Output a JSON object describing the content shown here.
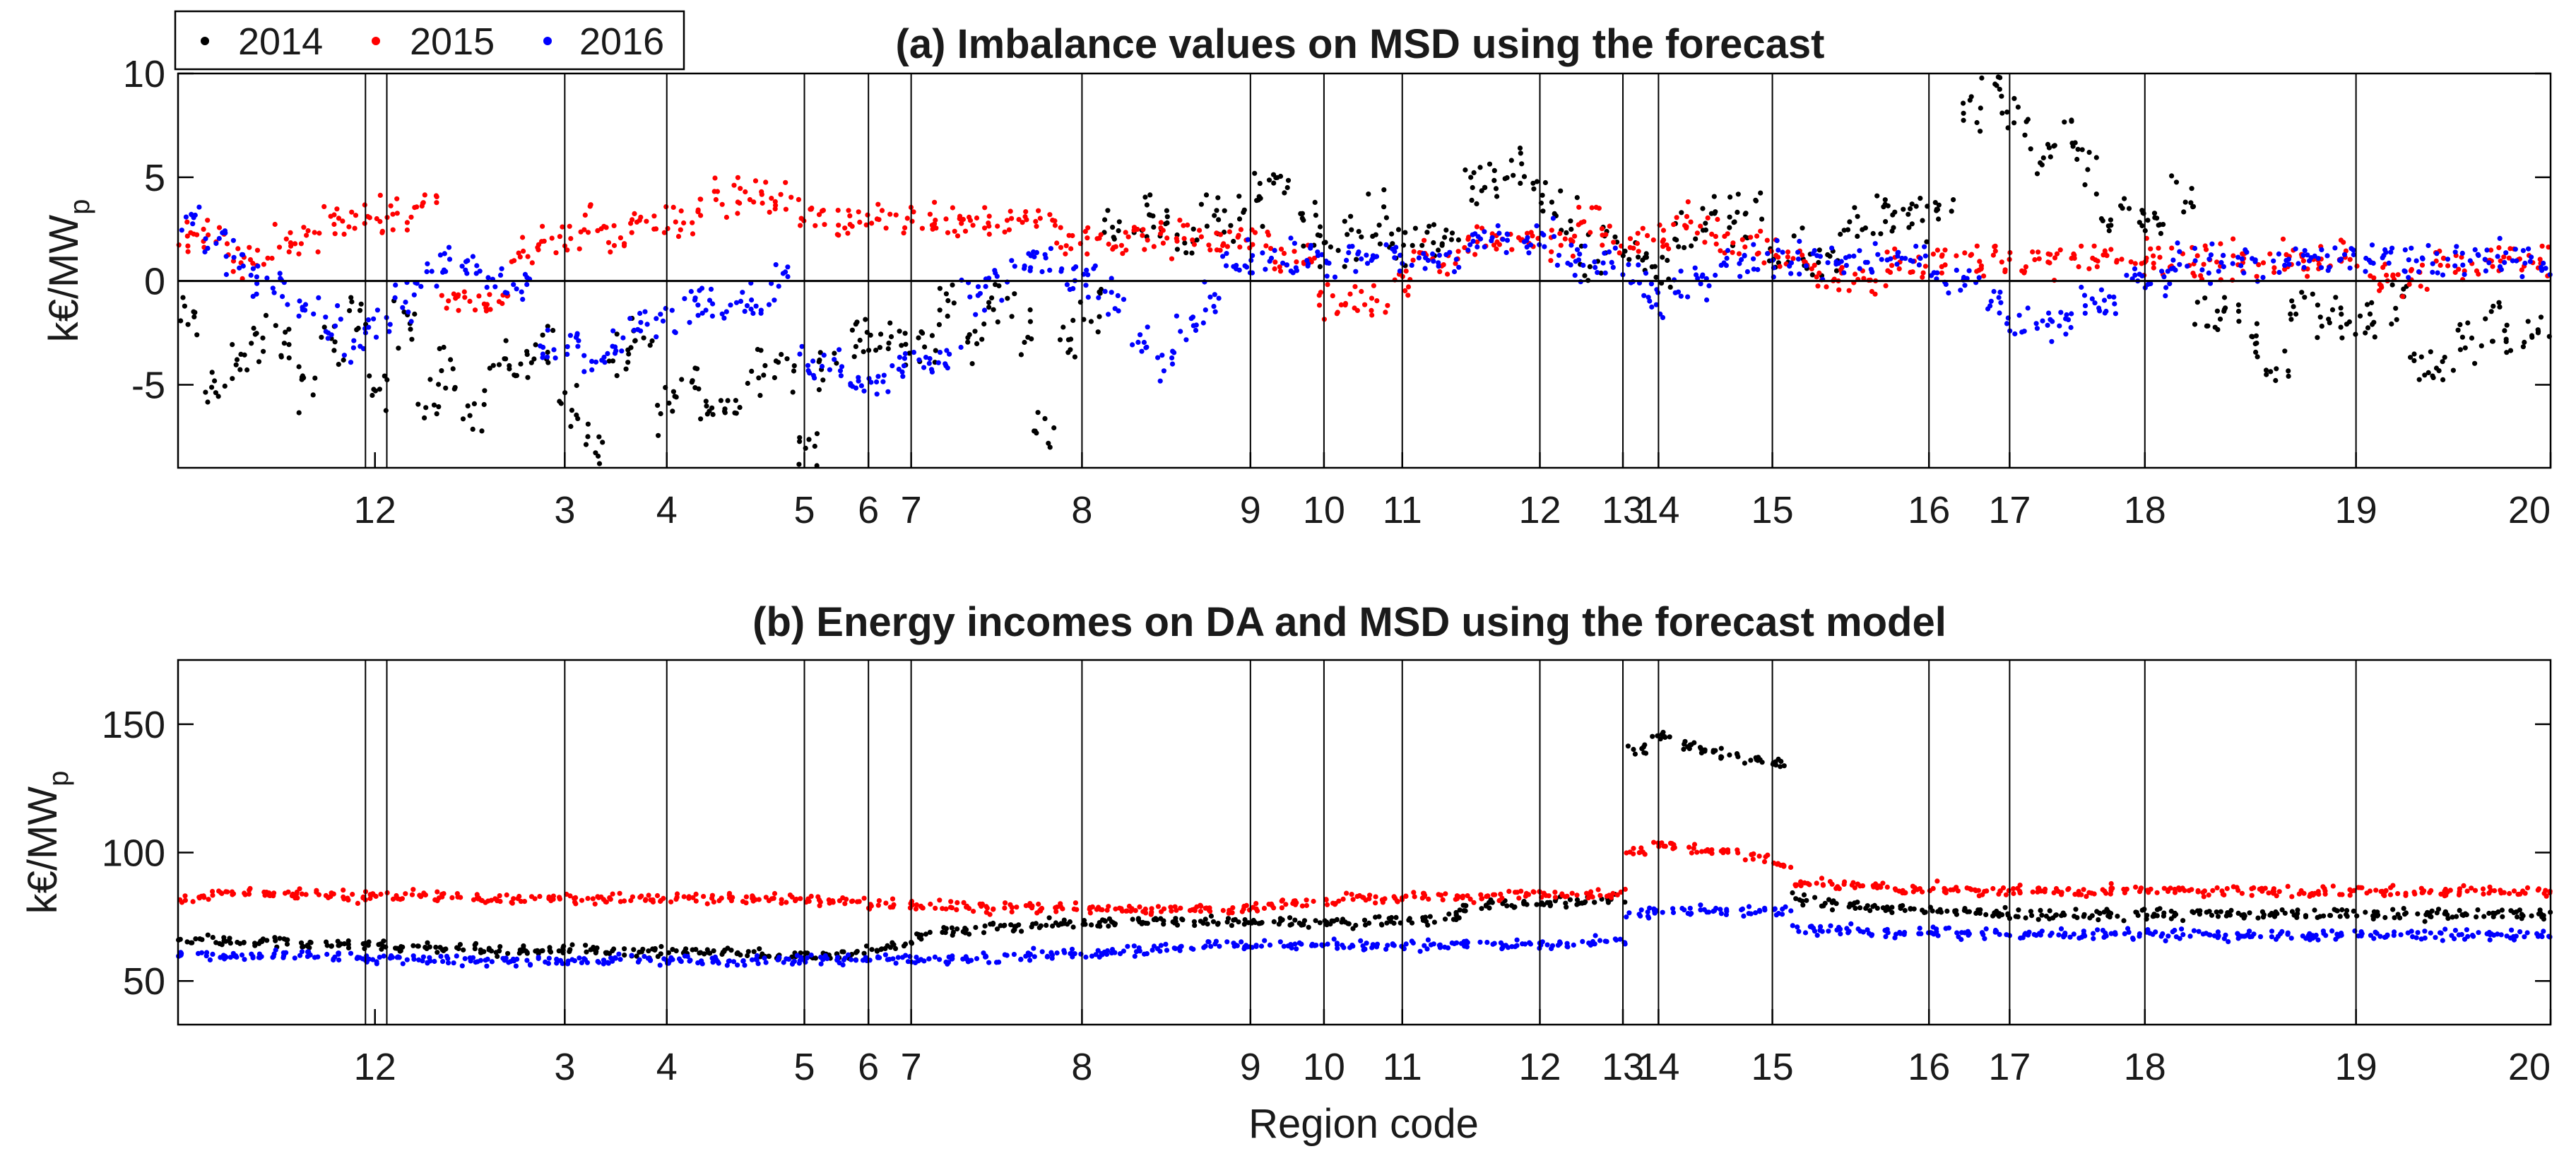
{
  "chart_data": [
    {
      "id": "a",
      "type": "scatter",
      "title": "(a) Imbalance values on MSD using the forecast",
      "ylabel": "k€/MW",
      "ylabel_sub": "p",
      "xlabel": "",
      "ylim": [
        -9,
        10
      ],
      "yticks": [
        -5,
        0,
        5,
        10
      ],
      "zero_line": true,
      "series": [
        {
          "name": "2014",
          "color": "#000000",
          "levels": [
            -2,
            -5,
            -4,
            -3,
            -3,
            -5,
            -3,
            -2,
            -5,
            -2,
            -6,
            -4,
            -6,
            -4,
            -4,
            -3,
            -6,
            -8,
            -4,
            -3,
            -6,
            -5,
            -6,
            -6,
            -4,
            -4,
            -8,
            -4,
            -3,
            -3,
            -3,
            -3,
            -1,
            -3,
            -1,
            -2,
            -7,
            -3,
            -1,
            3,
            3,
            3,
            2,
            3,
            3,
            4,
            5,
            3,
            2,
            2,
            3,
            2,
            2,
            2,
            5,
            5,
            5,
            4,
            3,
            1,
            2,
            1,
            1,
            2,
            3,
            3,
            3,
            1,
            1,
            1,
            3,
            3,
            3,
            3,
            3,
            8,
            9,
            8,
            6,
            7,
            5,
            3,
            3,
            3,
            4,
            -2,
            -2,
            -3,
            -4,
            -1,
            -2,
            -2,
            -2,
            -1,
            -4,
            -4,
            -3,
            -2,
            -3,
            -2
          ],
          "spread": 1.8
        },
        {
          "name": "2015",
          "color": "#ff0000",
          "levels": [
            2,
            2,
            1,
            1,
            2,
            2,
            3,
            3,
            3,
            3,
            4,
            -1,
            -1,
            -1,
            1,
            2,
            2,
            3,
            2,
            3,
            3,
            3,
            4,
            4,
            4,
            4,
            3,
            3,
            3,
            3,
            3,
            3,
            3,
            3,
            3,
            3,
            3,
            2,
            2,
            2,
            2,
            2,
            2,
            2,
            2,
            2,
            1,
            1,
            -1,
            -1,
            -1,
            0,
            1,
            1,
            2,
            2,
            2,
            2,
            2,
            3,
            2,
            2,
            2,
            3,
            2,
            2,
            2,
            1,
            1,
            0,
            0,
            0,
            1,
            1,
            1,
            1,
            1,
            1,
            1,
            1,
            1,
            1,
            1,
            1,
            1,
            1,
            1,
            1,
            1,
            1,
            1,
            1,
            0,
            0,
            0,
            1,
            1,
            1,
            1,
            1
          ],
          "spread": 1.3
        },
        {
          "name": "2016",
          "color": "#0000ff",
          "levels": [
            3,
            2,
            1,
            0,
            0,
            -1,
            -2,
            -3,
            -2,
            -1,
            0,
            1,
            1,
            0,
            0,
            -3,
            -3,
            -4,
            -3,
            -2,
            -2,
            -1,
            -1,
            -1,
            -1,
            0,
            -4,
            -4,
            -5,
            -5,
            -4,
            -4,
            -4,
            -1,
            0,
            1,
            1,
            0,
            0,
            -1,
            -3,
            -4,
            -2,
            -1,
            1,
            1,
            1,
            1,
            1,
            1,
            1,
            1,
            1,
            1,
            2,
            2,
            2,
            2,
            1,
            1,
            1,
            0,
            -1,
            0,
            0,
            1,
            1,
            1,
            1,
            1,
            1,
            1,
            1,
            1,
            0,
            0,
            -1,
            -2,
            -2,
            -2,
            -1,
            -1,
            0,
            0,
            1,
            1,
            1,
            1,
            1,
            1,
            1,
            1,
            1,
            1,
            1,
            1,
            1,
            1,
            1,
            1
          ],
          "spread": 1.3
        }
      ]
    },
    {
      "id": "b",
      "type": "scatter",
      "title": "(b) Energy incomes on DA and MSD using the forecast model",
      "ylabel": "k€/MW",
      "ylabel_sub": "p",
      "xlabel": "Region code",
      "ylim": [
        33,
        175
      ],
      "yticks": [
        50,
        100,
        150
      ],
      "zero_line": false,
      "series": [
        {
          "name": "2014",
          "color": "#000000",
          "levels": [
            66,
            66,
            65,
            65,
            65,
            64,
            64,
            64,
            64,
            63,
            63,
            63,
            63,
            62,
            62,
            62,
            62,
            62,
            62,
            61,
            61,
            61,
            61,
            61,
            60,
            60,
            60,
            60,
            60,
            62,
            64,
            68,
            70,
            70,
            71,
            71,
            72,
            72,
            72,
            73,
            73,
            73,
            73,
            73,
            73,
            73,
            73,
            73,
            73,
            73,
            73,
            73,
            74,
            76,
            78,
            80,
            80,
            80,
            81,
            81,
            82,
            140,
            145,
            142,
            140,
            138,
            136,
            134,
            82,
            80,
            80,
            79,
            78,
            78,
            77,
            77,
            76,
            76,
            76,
            76,
            76,
            76,
            76,
            76,
            76,
            76,
            76,
            76,
            76,
            76,
            76,
            76,
            76,
            76,
            76,
            76,
            76,
            76,
            76,
            76
          ],
          "spread": 3
        },
        {
          "name": "2015",
          "color": "#ff0000",
          "levels": [
            82,
            84,
            84,
            84,
            84,
            84,
            83,
            83,
            83,
            83,
            83,
            83,
            82,
            82,
            82,
            82,
            82,
            82,
            82,
            82,
            82,
            82,
            82,
            82,
            82,
            82,
            82,
            81,
            81,
            80,
            80,
            79,
            79,
            79,
            78,
            78,
            78,
            78,
            78,
            78,
            78,
            78,
            78,
            78,
            78,
            79,
            80,
            81,
            81,
            82,
            82,
            82,
            83,
            83,
            83,
            83,
            84,
            84,
            84,
            84,
            84,
            100,
            103,
            102,
            101,
            100,
            98,
            95,
            88,
            88,
            87,
            87,
            86,
            86,
            86,
            85,
            85,
            85,
            85,
            85,
            85,
            85,
            85,
            85,
            85,
            85,
            85,
            85,
            85,
            85,
            85,
            85,
            85,
            85,
            85,
            85,
            85,
            85,
            85,
            85
          ],
          "spread": 3
        },
        {
          "name": "2016",
          "color": "#0000ff",
          "levels": [
            60,
            60,
            60,
            60,
            60,
            60,
            60,
            59,
            59,
            59,
            58,
            58,
            58,
            58,
            58,
            58,
            58,
            58,
            58,
            58,
            58,
            58,
            58,
            58,
            58,
            58,
            58,
            58,
            58,
            59,
            59,
            59,
            59,
            59,
            59,
            60,
            60,
            61,
            61,
            62,
            62,
            63,
            63,
            64,
            64,
            64,
            64,
            64,
            64,
            64,
            64,
            64,
            64,
            64,
            64,
            64,
            64,
            64,
            64,
            65,
            65,
            76,
            77,
            77,
            77,
            77,
            77,
            77,
            70,
            70,
            70,
            69,
            69,
            69,
            69,
            68,
            68,
            68,
            68,
            68,
            68,
            68,
            68,
            68,
            68,
            68,
            68,
            68,
            68,
            68,
            68,
            68,
            68,
            68,
            68,
            68,
            68,
            68,
            68,
            68
          ],
          "spread": 3
        }
      ]
    }
  ],
  "region_ticks": [
    {
      "label": "12",
      "pos": 0.083
    },
    {
      "label": "3",
      "pos": 0.163
    },
    {
      "label": "4",
      "pos": 0.206
    },
    {
      "label": "5",
      "pos": 0.264
    },
    {
      "label": "6",
      "pos": 0.291
    },
    {
      "label": "7",
      "pos": 0.309
    },
    {
      "label": "8",
      "pos": 0.381
    },
    {
      "label": "9",
      "pos": 0.452
    },
    {
      "label": "10",
      "pos": 0.483
    },
    {
      "label": "11",
      "pos": 0.516
    },
    {
      "label": "12",
      "pos": 0.574
    },
    {
      "label": "13",
      "pos": 0.609
    },
    {
      "label": "14",
      "pos": 0.624
    },
    {
      "label": "15",
      "pos": 0.672
    },
    {
      "label": "16",
      "pos": 0.738
    },
    {
      "label": "17",
      "pos": 0.772
    },
    {
      "label": "18",
      "pos": 0.829
    },
    {
      "label": "19",
      "pos": 0.918
    },
    {
      "label": "20",
      "pos": 1.0
    }
  ],
  "region_dividers": [
    0.079,
    0.088,
    0.163,
    0.206,
    0.264,
    0.291,
    0.309,
    0.381,
    0.452,
    0.483,
    0.516,
    0.574,
    0.609,
    0.624,
    0.672,
    0.738,
    0.772,
    0.829,
    0.918
  ],
  "legend": [
    {
      "label": "2014",
      "color": "#000000"
    },
    {
      "label": "2015",
      "color": "#ff0000"
    },
    {
      "label": "2016",
      "color": "#0000ff"
    }
  ]
}
